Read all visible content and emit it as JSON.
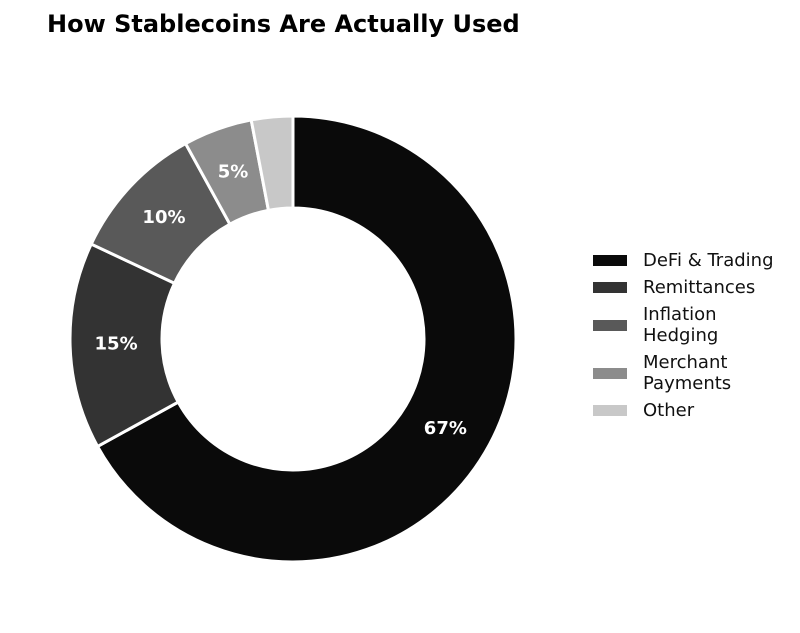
{
  "chart_data": {
    "type": "donut",
    "title": "How Stablecoins Are Actually Used",
    "categories": [
      "DeFi & Trading",
      "Remittances",
      "Inflation\nHedging",
      "Merchant\nPayments",
      "Other"
    ],
    "values": [
      67,
      15,
      10,
      5,
      3
    ],
    "value_labels": [
      "67%",
      "15%",
      "10%",
      "5%",
      null
    ],
    "colors": [
      "#0a0a0a",
      "#333333",
      "#595959",
      "#8c8c8c",
      "#c8c8c8"
    ],
    "legend": "right"
  }
}
